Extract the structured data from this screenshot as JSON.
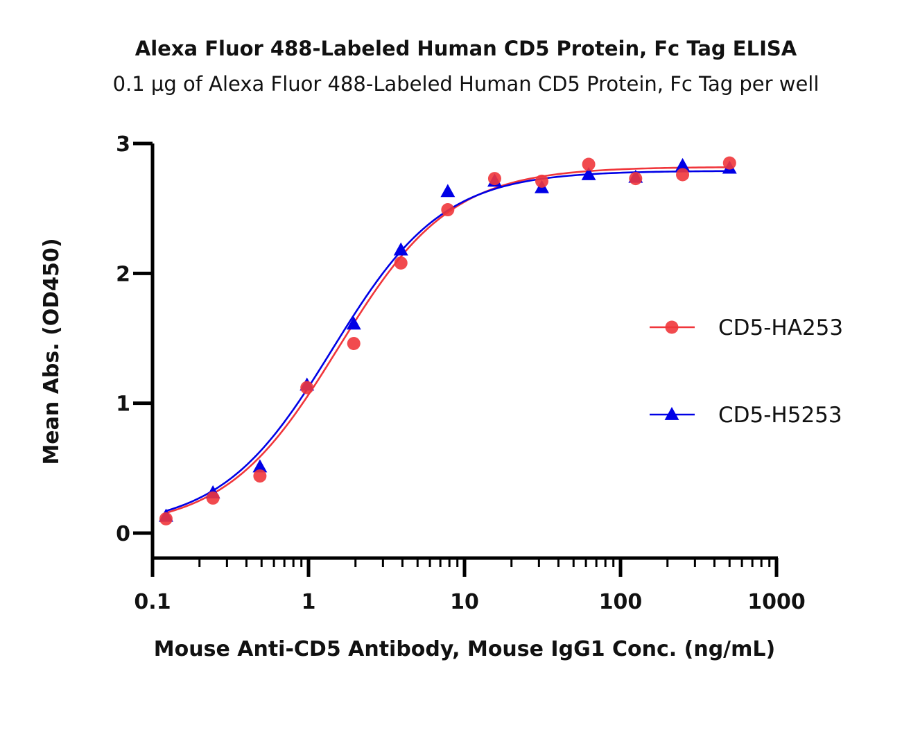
{
  "chart_data": {
    "type": "scatter",
    "title": "Alexa Fluor 488-Labeled Human CD5 Protein, Fc Tag ELISA",
    "subtitle": "0.1 µg of Alexa Fluor 488-Labeled Human CD5 Protein, Fc Tag per well",
    "xlabel": "Mouse Anti-CD5 Antibody, Mouse IgG1 Conc. (ng/mL)",
    "ylabel": "Mean Abs. (OD450)",
    "xscale": "log",
    "xlim": [
      0.1,
      1000
    ],
    "ylim": [
      -0.2,
      3.0
    ],
    "x_ticks": [
      0.1,
      1,
      10,
      100,
      1000
    ],
    "x_tick_labels": [
      "0.1",
      "1",
      "10",
      "100",
      "1000"
    ],
    "y_ticks": [
      0,
      1,
      2,
      3
    ],
    "y_tick_labels": [
      "0",
      "1",
      "2",
      "3"
    ],
    "grid": false,
    "legend_position": "right",
    "fit": "four-parameter logistic",
    "series": [
      {
        "name": "CD5-HA253",
        "color": "#f0363b",
        "marker": "circle",
        "x": [
          0.122,
          0.244,
          0.488,
          0.977,
          1.95,
          3.91,
          7.81,
          15.6,
          31.3,
          62.5,
          125,
          250,
          500
        ],
        "y": [
          0.11,
          0.27,
          0.44,
          1.12,
          1.46,
          2.08,
          2.49,
          2.73,
          2.71,
          2.84,
          2.73,
          2.76,
          2.85
        ],
        "fit_params": {
          "bottom": 0.03,
          "top": 2.82,
          "ec50": 1.55,
          "hill": 1.2
        }
      },
      {
        "name": "CD5-H5253",
        "color": "#0000e6",
        "marker": "triangle",
        "x": [
          0.122,
          0.244,
          0.488,
          0.977,
          1.95,
          3.91,
          7.81,
          15.6,
          31.3,
          62.5,
          125,
          250,
          500
        ],
        "y": [
          0.13,
          0.31,
          0.51,
          1.14,
          1.61,
          2.18,
          2.63,
          2.71,
          2.66,
          2.76,
          2.74,
          2.83,
          2.81
        ],
        "fit_params": {
          "bottom": 0.04,
          "top": 2.79,
          "ec50": 1.42,
          "hill": 1.22
        }
      }
    ]
  }
}
